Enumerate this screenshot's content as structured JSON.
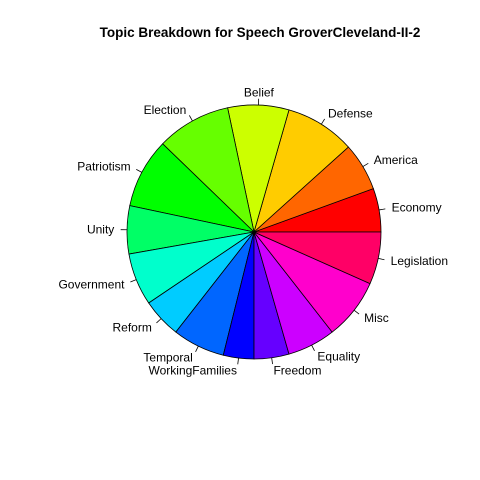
{
  "chart_data": {
    "type": "pie",
    "title": "Topic Breakdown for Speech GroverCleveland-II-2",
    "start_angle_deg": 0,
    "direction": "counterclockwise",
    "slices": [
      {
        "label": "Economy",
        "value": 5.0,
        "color": "#FF0000"
      },
      {
        "label": "America",
        "value": 5.5,
        "color": "#FF6600"
      },
      {
        "label": "Defense",
        "value": 8.0,
        "color": "#FFCC00"
      },
      {
        "label": "Belief",
        "value": 7.0,
        "color": "#CCFF00"
      },
      {
        "label": "Election",
        "value": 8.5,
        "color": "#66FF00"
      },
      {
        "label": "Patriotism",
        "value": 8.0,
        "color": "#00FF00"
      },
      {
        "label": "Unity",
        "value": 5.5,
        "color": "#00FF66"
      },
      {
        "label": "Government",
        "value": 6.0,
        "color": "#00FFCC"
      },
      {
        "label": "Reform",
        "value": 4.5,
        "color": "#00CCFF"
      },
      {
        "label": "Temporal",
        "value": 6.0,
        "color": "#0066FF"
      },
      {
        "label": "WorkingFamilies",
        "value": 3.5,
        "color": "#0000FF"
      },
      {
        "label": "Freedom",
        "value": 4.0,
        "color": "#6600FF"
      },
      {
        "label": "Equality",
        "value": 5.5,
        "color": "#CC00FF"
      },
      {
        "label": "Misc",
        "value": 7.0,
        "color": "#FF00CC"
      },
      {
        "label": "Legislation",
        "value": 6.0,
        "color": "#FF0066"
      }
    ]
  }
}
